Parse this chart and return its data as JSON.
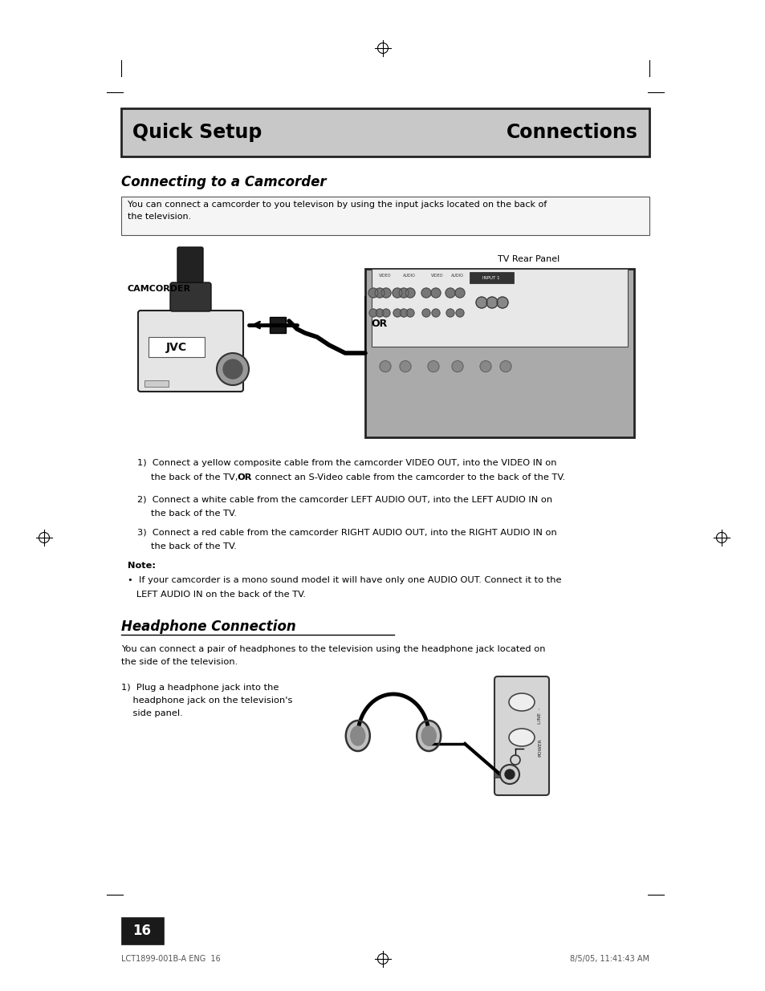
{
  "page_bg": "#ffffff",
  "header_bg": "#c8c8c8",
  "header_text_left": "Quick Setup",
  "header_text_right": "Connections",
  "header_fontsize": 17,
  "section1_title": "Connecting to a Camcorder",
  "section1_intro_line1": "You can connect a camcorder to you televison by using the input jacks located on the back of",
  "section1_intro_line2": "the television.",
  "inst1_line1": "Connect a yellow composite cable from the camcorder VIDEO OUT, into the VIDEO IN on",
  "inst1_line2": "the back of the TV, ",
  "inst1_bold": "OR",
  "inst1_line2b": " connect an S-Video cable from the camcorder to the back of the TV.",
  "inst2_line1": "Connect a white cable from the camcorder LEFT AUDIO OUT, into the LEFT AUDIO IN on",
  "inst2_line2": "the back of the TV.",
  "inst3_line1": "Connect a red cable from the camcorder RIGHT AUDIO OUT, into the RIGHT AUDIO IN on",
  "inst3_line2": "the back of the TV.",
  "note_title": "Note:",
  "note_line1": "•  If your camcorder is a mono sound model it will have only one AUDIO OUT. Connect it to the",
  "note_line2": "   LEFT AUDIO IN on the back of the TV.",
  "section2_title": "Headphone Connection",
  "section2_intro_line1": "You can connect a pair of headphones to the television using the headphone jack located on",
  "section2_intro_line2": "the side of the television.",
  "hp_inst_line1": "1)  Plug a headphone jack into the",
  "hp_inst_line2": "    headphone jack on the television's",
  "hp_inst_line3": "    side panel.",
  "tv_rear_panel_label": "TV Rear Panel",
  "camcorder_label": "CAMCORDER",
  "or_text": "OR",
  "page_number": "16",
  "footer_left": "LCT1899-001B-A ENG  16",
  "footer_right": "8/5/05, 11:41:43 AM",
  "ml": 0.158,
  "mr": 0.848
}
